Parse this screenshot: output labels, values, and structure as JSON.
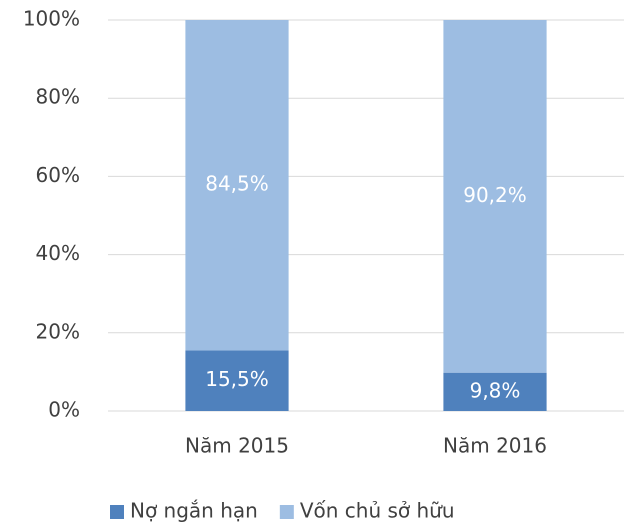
{
  "chart_data": {
    "type": "stacked_bar",
    "categories": [
      "Năm 2015",
      "Năm 2016"
    ],
    "series": [
      {
        "name": "Nợ ngắn hạn",
        "color": "#4f81bd",
        "values": [
          15.5,
          9.8
        ],
        "value_labels": [
          "15,5%",
          "9,8%"
        ]
      },
      {
        "name": "Vốn chủ sở hữu",
        "color": "#9dbde2",
        "values": [
          84.5,
          90.2
        ],
        "value_labels": [
          "84,5%",
          "90,2%"
        ]
      }
    ],
    "ylim": [
      0,
      100
    ],
    "yticks": [
      {
        "value": 0,
        "label": "0%"
      },
      {
        "value": 20,
        "label": "20%"
      },
      {
        "value": 40,
        "label": "40%"
      },
      {
        "value": 60,
        "label": "60%"
      },
      {
        "value": 80,
        "label": "80%"
      },
      {
        "value": 100,
        "label": "100%"
      }
    ],
    "grid": true,
    "legend": "bottom"
  }
}
